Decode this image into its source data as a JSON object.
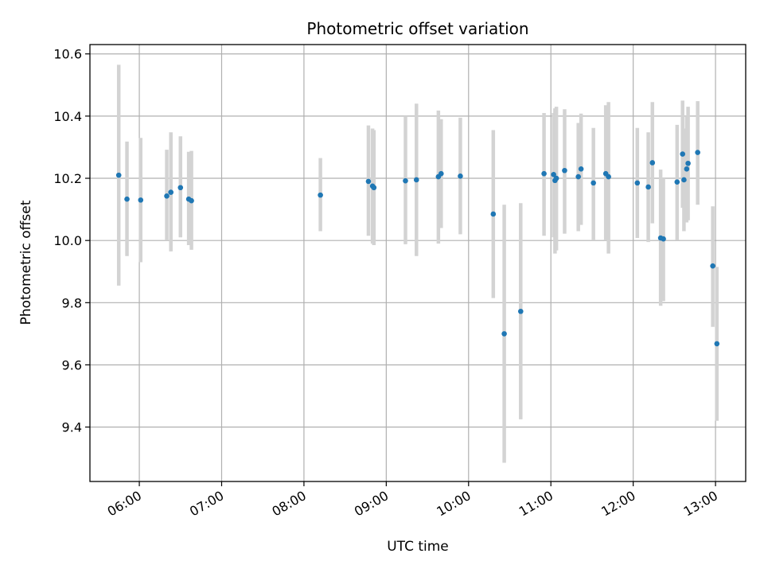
{
  "chart_data": {
    "type": "scatter",
    "title": "Photometric offset variation",
    "xlabel": "UTC time",
    "ylabel": "Photometric offset",
    "x_ticks": [
      "06:00",
      "07:00",
      "08:00",
      "09:00",
      "10:00",
      "11:00",
      "12:00",
      "13:00"
    ],
    "y_ticks": [
      "9.4",
      "9.6",
      "9.8",
      "10.0",
      "10.2",
      "10.4",
      "10.6"
    ],
    "xlim": [
      "05:24",
      "13:22"
    ],
    "ylim": [
      9.225,
      10.63
    ],
    "grid": true,
    "colors": {
      "point": "#1f77b4",
      "errorbar": "#d3d3d3",
      "grid": "#b0b0b0"
    },
    "series": [
      {
        "points": [
          {
            "x": "05:45",
            "y": 10.21,
            "ylow": 9.855,
            "yhigh": 10.565
          },
          {
            "x": "05:51",
            "y": 10.133,
            "ylow": 9.95,
            "yhigh": 10.318
          },
          {
            "x": "06:01",
            "y": 10.13,
            "ylow": 9.93,
            "yhigh": 10.33
          },
          {
            "x": "06:20",
            "y": 10.143,
            "ylow": 10.0,
            "yhigh": 10.292
          },
          {
            "x": "06:23",
            "y": 10.155,
            "ylow": 9.965,
            "yhigh": 10.348
          },
          {
            "x": "06:30",
            "y": 10.17,
            "ylow": 10.01,
            "yhigh": 10.335
          },
          {
            "x": "06:36",
            "y": 10.133,
            "ylow": 9.985,
            "yhigh": 10.285
          },
          {
            "x": "06:38",
            "y": 10.128,
            "ylow": 9.97,
            "yhigh": 10.288
          },
          {
            "x": "08:12",
            "y": 10.146,
            "ylow": 10.03,
            "yhigh": 10.265
          },
          {
            "x": "08:47",
            "y": 10.19,
            "ylow": 10.015,
            "yhigh": 10.37
          },
          {
            "x": "08:50",
            "y": 10.175,
            "ylow": 9.99,
            "yhigh": 10.36
          },
          {
            "x": "08:51",
            "y": 10.17,
            "ylow": 9.985,
            "yhigh": 10.355
          },
          {
            "x": "09:14",
            "y": 10.192,
            "ylow": 9.988,
            "yhigh": 10.4
          },
          {
            "x": "09:22",
            "y": 10.195,
            "ylow": 9.95,
            "yhigh": 10.44
          },
          {
            "x": "09:38",
            "y": 10.205,
            "ylow": 9.99,
            "yhigh": 10.418
          },
          {
            "x": "09:40",
            "y": 10.215,
            "ylow": 10.04,
            "yhigh": 10.39
          },
          {
            "x": "09:54",
            "y": 10.207,
            "ylow": 10.02,
            "yhigh": 10.395
          },
          {
            "x": "10:18",
            "y": 10.085,
            "ylow": 9.815,
            "yhigh": 10.355
          },
          {
            "x": "10:26",
            "y": 9.7,
            "ylow": 9.285,
            "yhigh": 10.115
          },
          {
            "x": "10:38",
            "y": 9.772,
            "ylow": 9.425,
            "yhigh": 10.12
          },
          {
            "x": "10:55",
            "y": 10.215,
            "ylow": 10.015,
            "yhigh": 10.41
          },
          {
            "x": "11:02",
            "y": 10.212,
            "ylow": 10.01,
            "yhigh": 10.41
          },
          {
            "x": "11:03",
            "y": 10.193,
            "ylow": 9.958,
            "yhigh": 10.425
          },
          {
            "x": "11:04",
            "y": 10.2,
            "ylow": 9.968,
            "yhigh": 10.43
          },
          {
            "x": "11:10",
            "y": 10.225,
            "ylow": 10.022,
            "yhigh": 10.422
          },
          {
            "x": "11:20",
            "y": 10.205,
            "ylow": 10.03,
            "yhigh": 10.378
          },
          {
            "x": "11:22",
            "y": 10.23,
            "ylow": 10.05,
            "yhigh": 10.408
          },
          {
            "x": "11:31",
            "y": 10.185,
            "ylow": 10.0,
            "yhigh": 10.362
          },
          {
            "x": "11:40",
            "y": 10.215,
            "ylow": 10.0,
            "yhigh": 10.435
          },
          {
            "x": "11:42",
            "y": 10.205,
            "ylow": 9.958,
            "yhigh": 10.445
          },
          {
            "x": "12:03",
            "y": 10.185,
            "ylow": 10.008,
            "yhigh": 10.362
          },
          {
            "x": "12:11",
            "y": 10.172,
            "ylow": 9.995,
            "yhigh": 10.348
          },
          {
            "x": "12:14",
            "y": 10.25,
            "ylow": 10.055,
            "yhigh": 10.445
          },
          {
            "x": "12:20",
            "y": 10.008,
            "ylow": 9.79,
            "yhigh": 10.228
          },
          {
            "x": "12:22",
            "y": 10.005,
            "ylow": 9.805,
            "yhigh": 10.2
          },
          {
            "x": "12:32",
            "y": 10.188,
            "ylow": 10.002,
            "yhigh": 10.372
          },
          {
            "x": "12:36",
            "y": 10.278,
            "ylow": 10.105,
            "yhigh": 10.45
          },
          {
            "x": "12:37",
            "y": 10.195,
            "ylow": 10.03,
            "yhigh": 10.36
          },
          {
            "x": "12:39",
            "y": 10.23,
            "ylow": 10.058,
            "yhigh": 10.4
          },
          {
            "x": "12:40",
            "y": 10.248,
            "ylow": 10.065,
            "yhigh": 10.43
          },
          {
            "x": "12:47",
            "y": 10.283,
            "ylow": 10.115,
            "yhigh": 10.448
          },
          {
            "x": "12:58",
            "y": 9.918,
            "ylow": 9.722,
            "yhigh": 10.11
          },
          {
            "x": "13:01",
            "y": 9.668,
            "ylow": 9.42,
            "yhigh": 9.915
          }
        ]
      }
    ]
  }
}
